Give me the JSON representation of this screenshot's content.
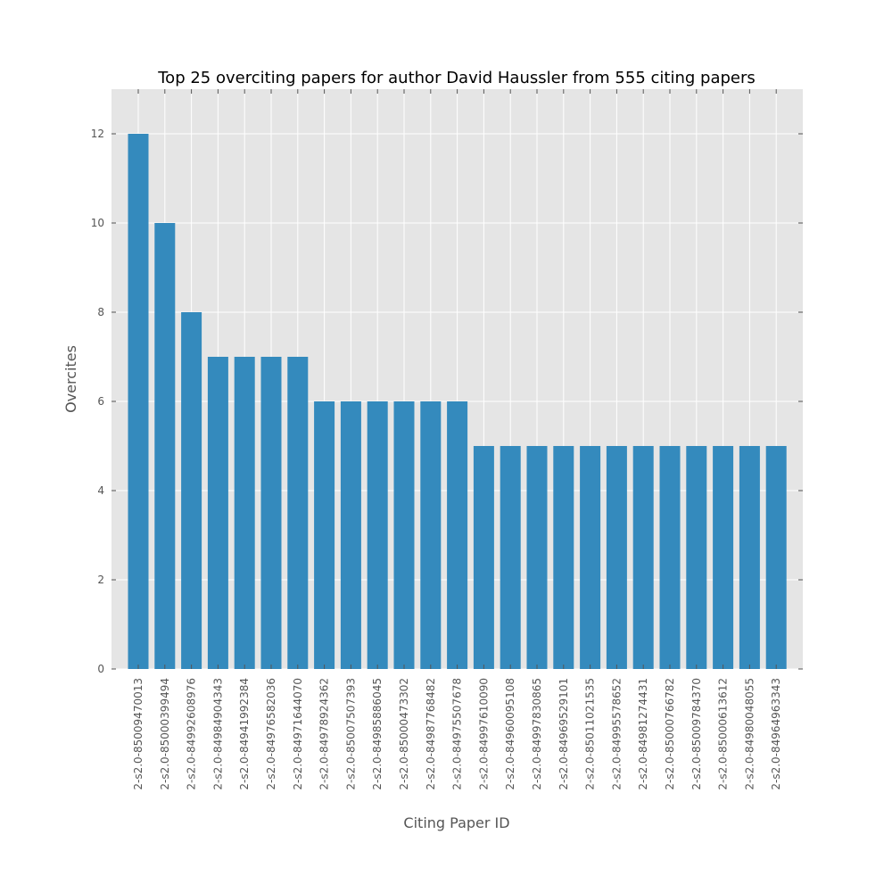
{
  "chart_data": {
    "type": "bar",
    "title": "Top 25 overciting papers for author David Haussler from 555 citing papers",
    "xlabel": "Citing Paper ID",
    "ylabel": "Overcites",
    "ylim": [
      0,
      13
    ],
    "yticks": [
      0,
      2,
      4,
      6,
      8,
      10,
      12
    ],
    "grid": true,
    "categories": [
      "2-s2.0-85009470013",
      "2-s2.0-85000399494",
      "2-s2.0-84992608976",
      "2-s2.0-84984904343",
      "2-s2.0-84941992384",
      "2-s2.0-84976582036",
      "2-s2.0-84971644070",
      "2-s2.0-84978924362",
      "2-s2.0-85007507393",
      "2-s2.0-84985886045",
      "2-s2.0-85000473302",
      "2-s2.0-84987768482",
      "2-s2.0-84975507678",
      "2-s2.0-84997610090",
      "2-s2.0-84960095108",
      "2-s2.0-84997830865",
      "2-s2.0-84969529101",
      "2-s2.0-85011021535",
      "2-s2.0-84995578652",
      "2-s2.0-84981274431",
      "2-s2.0-85000766782",
      "2-s2.0-85009784370",
      "2-s2.0-85000613612",
      "2-s2.0-84980048055",
      "2-s2.0-84964963343"
    ],
    "values": [
      12,
      10,
      8,
      7,
      7,
      7,
      7,
      6,
      6,
      6,
      6,
      6,
      6,
      5,
      5,
      5,
      5,
      5,
      5,
      5,
      5,
      5,
      5,
      5,
      5
    ],
    "colors": {
      "bar": "#348ABD",
      "background": "#E5E5E5"
    }
  }
}
